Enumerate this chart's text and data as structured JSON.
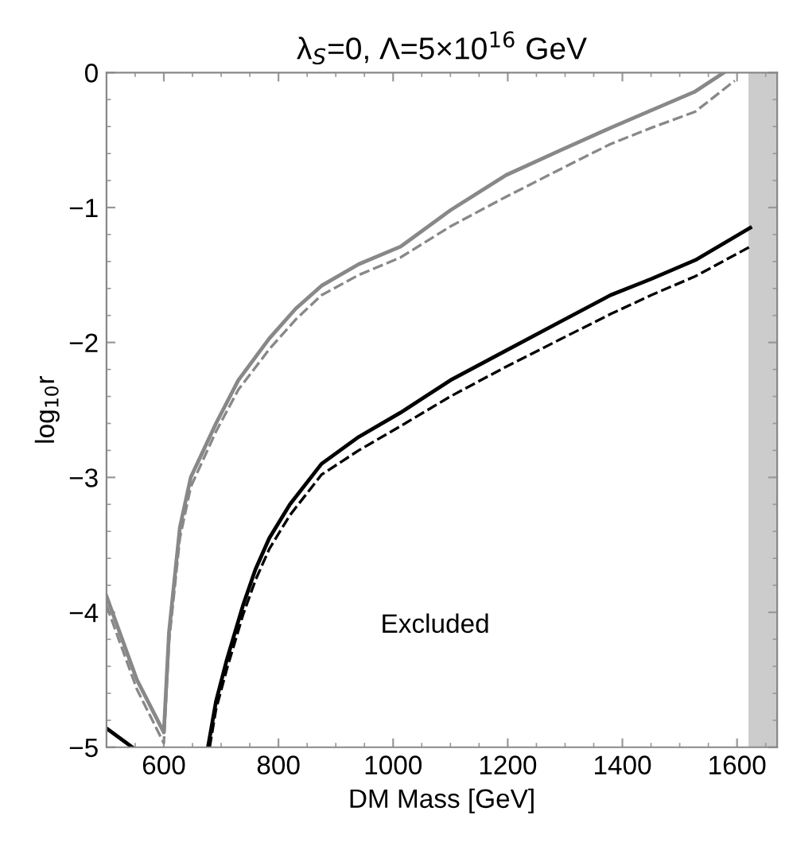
{
  "chart_data": {
    "type": "line",
    "title": "λ$_{S}$=0, Λ=5×10$^{16}$ GeV",
    "xlabel": "DM Mass [GeV]",
    "ylabel": "log$_{10}$r",
    "series": [
      {
        "color": "#888888",
        "line_style": "solid",
        "x": [
          500,
          553,
          600,
          609,
          628,
          647,
          691,
          730,
          784,
          830,
          875,
          940,
          1013,
          1100,
          1197,
          1290,
          1379,
          1450,
          1527,
          1577
        ],
        "values": [
          -3.88,
          -4.5,
          -4.89,
          -4.15,
          -3.37,
          -3.0,
          -2.6,
          -2.28,
          -1.97,
          -1.75,
          -1.58,
          -1.42,
          -1.29,
          -1.02,
          -0.76,
          -0.58,
          -0.41,
          -0.28,
          -0.14,
          0
        ]
      },
      {
        "color": "#888888",
        "line_style": "dashed",
        "x": [
          500,
          553,
          600,
          609,
          628,
          647,
          691,
          730,
          784,
          830,
          875,
          940,
          1013,
          1100,
          1197,
          1290,
          1379,
          1450,
          1527,
          1596
        ],
        "values": [
          -3.95,
          -4.57,
          -4.97,
          -4.22,
          -3.45,
          -3.07,
          -2.66,
          -2.35,
          -2.05,
          -1.83,
          -1.65,
          -1.5,
          -1.37,
          -1.14,
          -0.92,
          -0.72,
          -0.53,
          -0.41,
          -0.29,
          -0.06
        ]
      },
      {
        "color": "#000000",
        "line_style": "solid",
        "x": [
          500,
          545
        ],
        "values": [
          -4.86,
          -5
        ]
      },
      {
        "color": "#000000",
        "line_style": "solid",
        "x": [
          677,
          691,
          710,
          738,
          760,
          784,
          820,
          875,
          940,
          1013,
          1100,
          1197,
          1290,
          1379,
          1450,
          1527,
          1623
        ],
        "values": [
          -5,
          -4.66,
          -4.35,
          -3.95,
          -3.68,
          -3.45,
          -3.2,
          -2.9,
          -2.7,
          -2.52,
          -2.28,
          -2.06,
          -1.85,
          -1.65,
          -1.53,
          -1.39,
          -1.15
        ]
      },
      {
        "color": "#000000",
        "line_style": "dashed",
        "x": [
          680,
          691,
          710,
          738,
          760,
          784,
          820,
          875,
          940,
          1013,
          1100,
          1197,
          1290,
          1379,
          1450,
          1527,
          1623
        ],
        "values": [
          -5,
          -4.72,
          -4.42,
          -4.02,
          -3.76,
          -3.53,
          -3.28,
          -2.98,
          -2.8,
          -2.62,
          -2.4,
          -2.18,
          -1.98,
          -1.79,
          -1.65,
          -1.51,
          -1.29
        ]
      }
    ],
    "xlim": [
      500,
      1670
    ],
    "ylim": [
      -5,
      0
    ],
    "xticks": [
      600,
      800,
      1000,
      1200,
      1400,
      1600
    ],
    "yticks": [
      -5,
      -4,
      -3,
      -2,
      -1,
      0
    ],
    "bands": [
      {
        "axis": "x",
        "from": 1620,
        "to": 1670,
        "color": "#cccccc"
      }
    ],
    "annotations": [
      "Excluded"
    ],
    "grid": false,
    "legend": false
  }
}
